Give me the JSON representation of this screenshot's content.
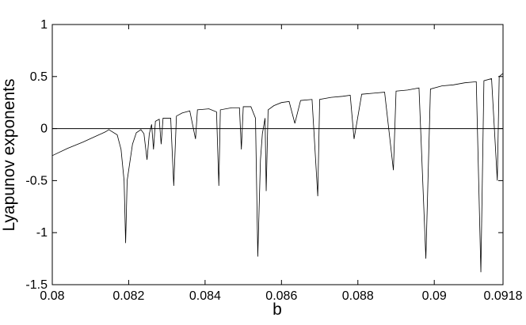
{
  "chart_data": {
    "type": "line",
    "x_label": "b",
    "y_label": "Lyapunov exponents",
    "x": [
      0.08,
      0.0804,
      0.0808,
      0.0811,
      0.0814,
      0.08148,
      0.0817,
      0.0818,
      0.08188,
      0.08192,
      0.08196,
      0.0821,
      0.0822,
      0.08232,
      0.0824,
      0.08248,
      0.08254,
      0.0826,
      0.08265,
      0.0827,
      0.0828,
      0.08285,
      0.0829,
      0.0831,
      0.08318,
      0.08325,
      0.0834,
      0.0836,
      0.08375,
      0.0838,
      0.0841,
      0.0843,
      0.08436,
      0.0844,
      0.0847,
      0.0849,
      0.08495,
      0.085,
      0.0852,
      0.08532,
      0.08538,
      0.08545,
      0.0855,
      0.08557,
      0.0856,
      0.08565,
      0.0858,
      0.086,
      0.0862,
      0.08635,
      0.0865,
      0.0868,
      0.08695,
      0.087,
      0.0873,
      0.0876,
      0.0878,
      0.0879,
      0.0881,
      0.0884,
      0.0887,
      0.08893,
      0.089,
      0.0893,
      0.0896,
      0.08978,
      0.0899,
      0.0902,
      0.0905,
      0.0908,
      0.0911,
      0.09122,
      0.0913,
      0.0915,
      0.09165,
      0.0917,
      0.0918
    ],
    "series": [
      {
        "color": "#000000",
        "values": [
          -0.26,
          -0.19,
          -0.13,
          -0.08,
          -0.03,
          -0.01,
          -0.06,
          -0.2,
          -0.5,
          -1.1,
          -0.5,
          -0.15,
          -0.04,
          -0.01,
          -0.05,
          -0.3,
          -0.05,
          0.04,
          -0.2,
          0.07,
          0.09,
          -0.15,
          0.1,
          0.1,
          -0.55,
          0.12,
          0.15,
          0.17,
          -0.1,
          0.18,
          0.19,
          0.16,
          -0.55,
          0.18,
          0.2,
          0.2,
          -0.2,
          0.21,
          0.21,
          0.1,
          -1.23,
          -0.3,
          -0.05,
          0.1,
          -0.6,
          0.18,
          0.22,
          0.25,
          0.26,
          0.05,
          0.27,
          0.28,
          -0.65,
          0.28,
          0.3,
          0.31,
          0.32,
          -0.1,
          0.33,
          0.34,
          0.35,
          -0.4,
          0.36,
          0.37,
          0.39,
          -1.25,
          0.38,
          0.41,
          0.42,
          0.44,
          0.45,
          -1.38,
          0.46,
          0.48,
          -0.5,
          0.5,
          0.53
        ]
      }
    ],
    "xlim": [
      0.08,
      0.0918
    ],
    "xticks": [
      0.08,
      0.082,
      0.084,
      0.086,
      0.088,
      0.09,
      0.0918
    ],
    "ylim": [
      -1.5,
      1
    ],
    "yticks": [
      -1.5,
      -1,
      -0.5,
      0,
      0.5,
      1
    ],
    "zero_line": true
  }
}
